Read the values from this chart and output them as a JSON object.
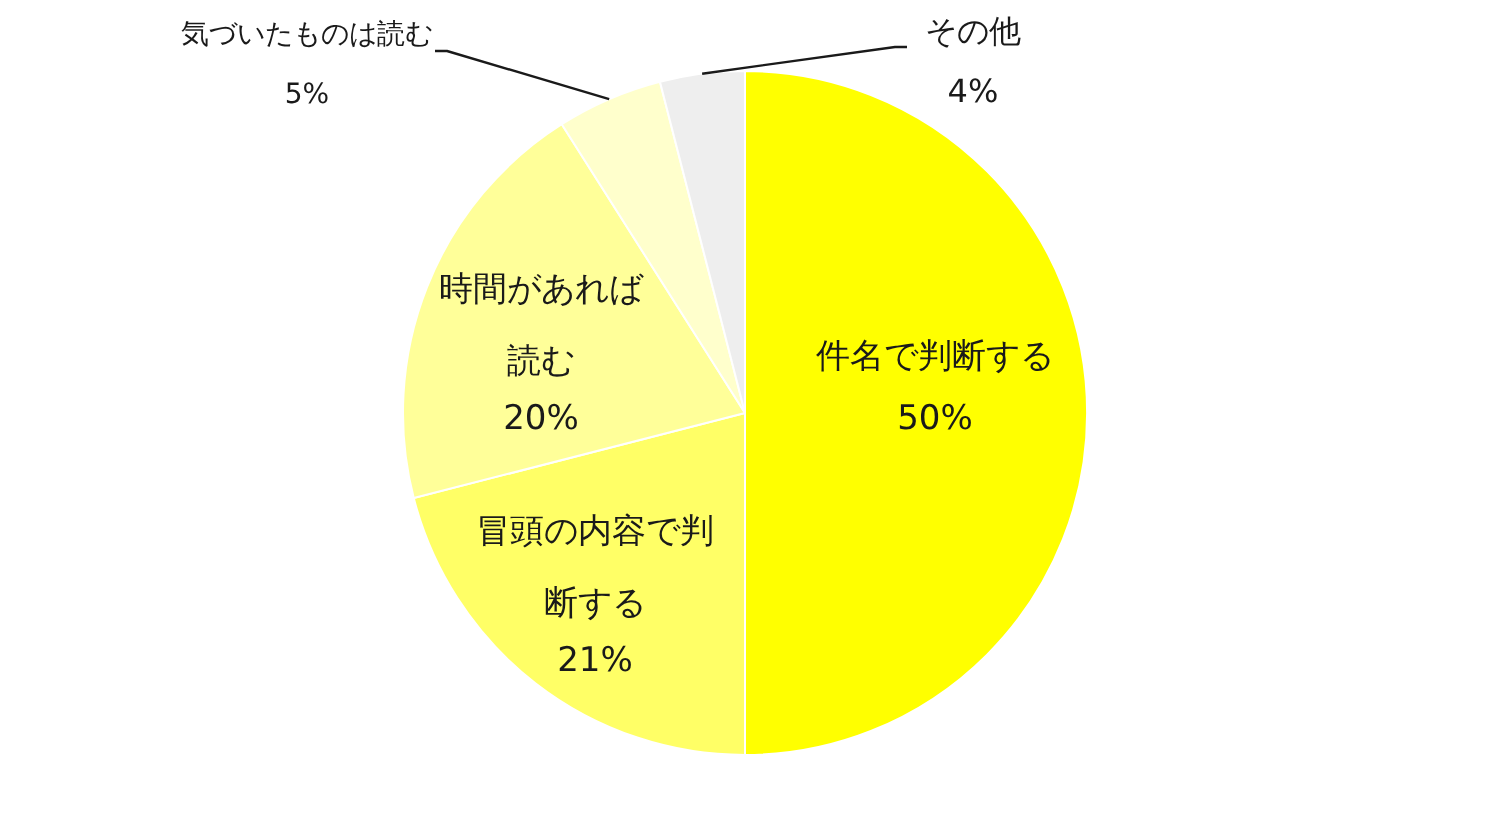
{
  "chart_data": {
    "type": "pie",
    "categories": [
      "件名で判断する",
      "冒頭の内容で判断する",
      "時間があれば読む",
      "気づいたものは読む",
      "その他"
    ],
    "values": [
      50,
      21,
      20,
      5,
      4
    ],
    "colors": [
      "#ffff00",
      "#ffff66",
      "#ffff99",
      "#ffffcc",
      "#eeeeee"
    ],
    "value_labels": [
      "50%",
      "21%",
      "20%",
      "5%",
      "4%"
    ]
  }
}
